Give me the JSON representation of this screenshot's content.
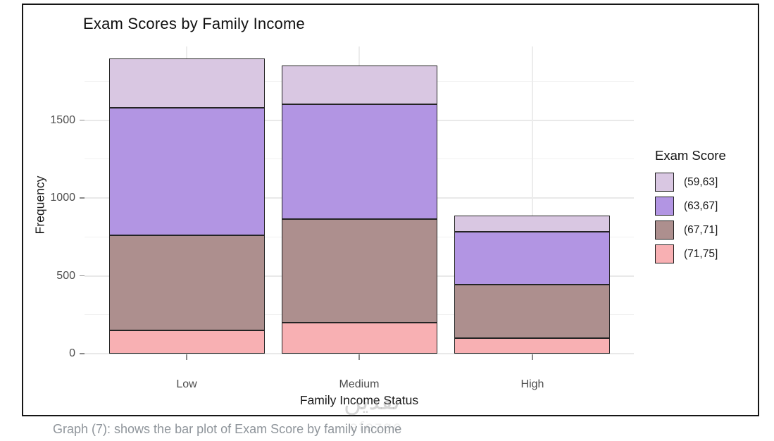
{
  "chart_data": {
    "type": "bar",
    "stacked": true,
    "title": "Exam Scores by Family Income",
    "xlabel": "Family Income Status",
    "ylabel": "Frequency",
    "categories": [
      "Low",
      "Medium",
      "High"
    ],
    "series": [
      {
        "name": "(71,75]",
        "color": "#f8b0b3",
        "values": [
          150,
          200,
          100
        ]
      },
      {
        "name": "(67,71]",
        "color": "#ad8f8e",
        "values": [
          610,
          665,
          345
        ]
      },
      {
        "name": "(63,67]",
        "color": "#b295e3",
        "values": [
          820,
          735,
          340
        ]
      },
      {
        "name": "(59,63]",
        "color": "#d9c7e2",
        "values": [
          315,
          250,
          100
        ]
      }
    ],
    "stack_order_bottom_to_top": [
      "(71,75]",
      "(67,71]",
      "(63,67]",
      "(59,63]"
    ],
    "totals": [
      1895,
      1850,
      885
    ],
    "y_ticks": [
      0,
      500,
      1000,
      1500
    ],
    "ylim": [
      0,
      1970
    ],
    "grid": true,
    "bar_outline_color": "#242424",
    "legend": {
      "title": "Exam Score",
      "position": "right",
      "entries": [
        "(59,63]",
        "(63,67]",
        "(67,71]",
        "(71,75]"
      ]
    }
  },
  "caption": "Graph (7): shows the bar plot of Exam Score by family income",
  "watermark": {
    "text": "نقدين",
    "subtext": "efezgo"
  }
}
